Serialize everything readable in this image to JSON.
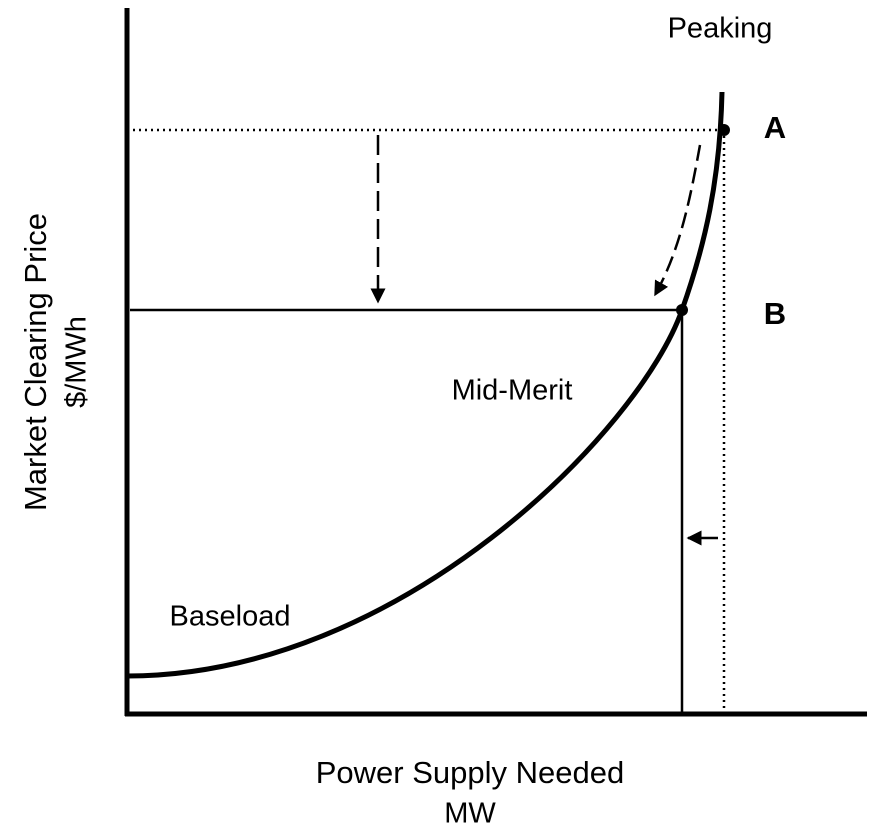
{
  "labels": {
    "peaking": "Peaking",
    "point_a": "A",
    "point_b": "B",
    "mid_merit": "Mid-Merit",
    "baseload": "Baseload"
  },
  "y_axis": {
    "title": "Market Clearing Price",
    "unit": "$/MWh"
  },
  "x_axis": {
    "title": "Power Supply Needed",
    "unit": "MW"
  }
}
